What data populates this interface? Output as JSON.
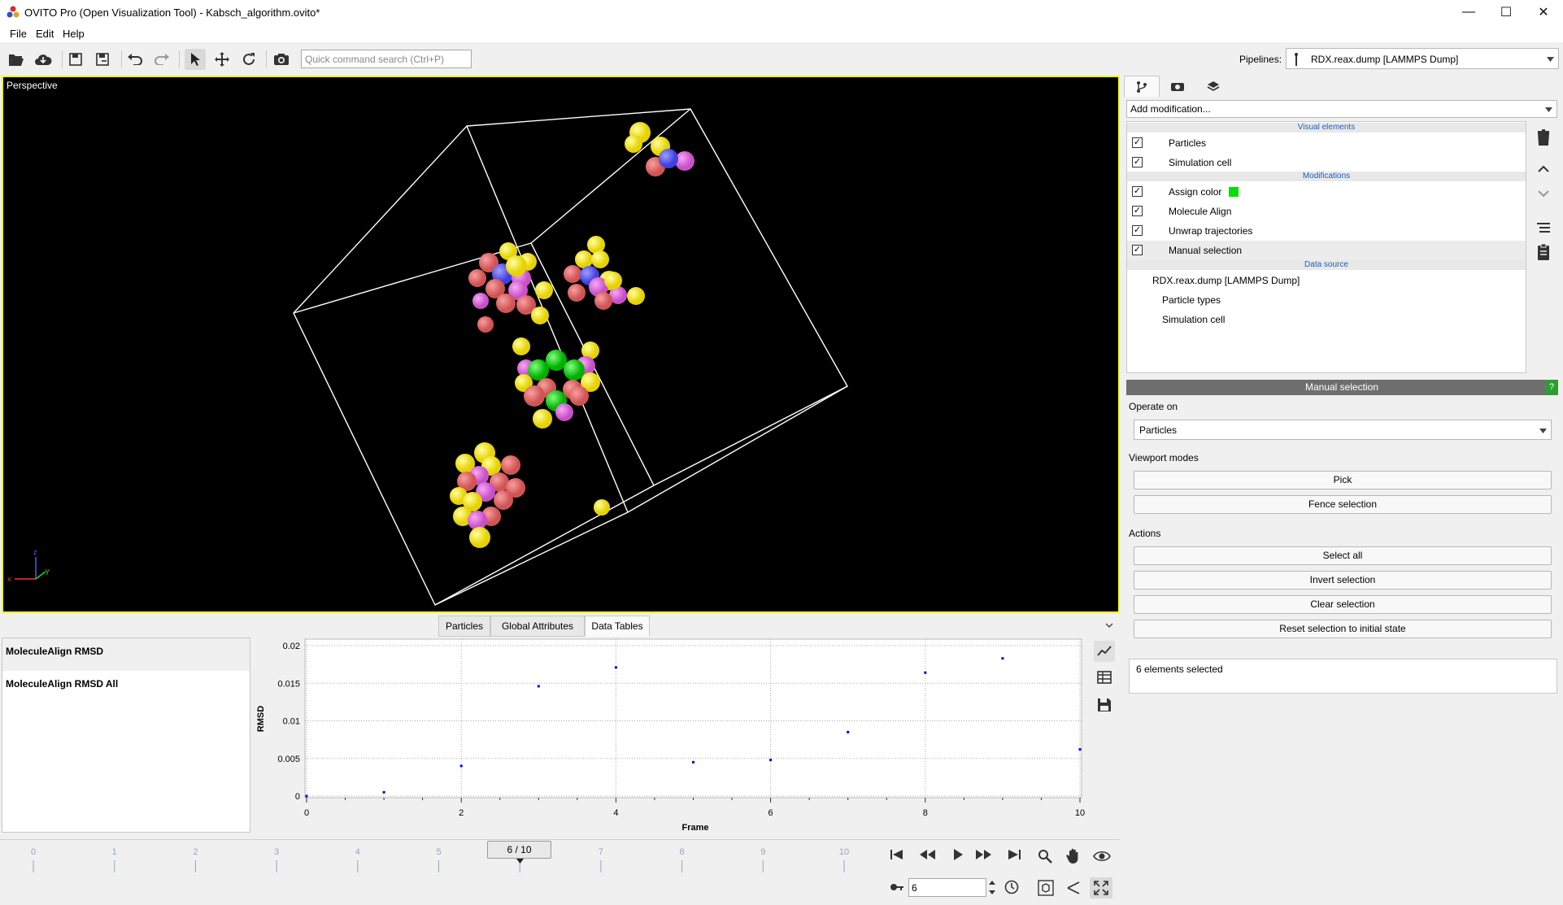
{
  "window": {
    "title": "OVITO Pro (Open Visualization Tool) - Kabsch_algorithm.ovito*",
    "minimize": "—",
    "maximize": "☐",
    "close": "✕"
  },
  "menu": [
    "File",
    "Edit",
    "Help"
  ],
  "toolbar": {
    "search_placeholder": "Quick command search (Ctrl+P)",
    "pipelines_label": "Pipelines:",
    "pipeline_value": "RDX.reax.dump [LAMMPS Dump]"
  },
  "viewport": {
    "caption": "Perspective",
    "axes": {
      "x": "x",
      "y": "y",
      "z": "z"
    }
  },
  "bottom_tabs": [
    "Particles",
    "Global Attributes",
    "Data Tables"
  ],
  "active_bottom_tab": "Data Tables",
  "data_tables": [
    "MoleculeAlign RMSD",
    "MoleculeAlign RMSD All"
  ],
  "chart_data": {
    "type": "scatter",
    "xlabel": "Frame",
    "ylabel": "RMSD",
    "xlim": [
      0,
      10
    ],
    "ylim": [
      0,
      0.02
    ],
    "x_ticks": [
      "0",
      "2",
      "4",
      "6",
      "8",
      "10"
    ],
    "y_ticks": [
      "0",
      "0.005",
      "0.01",
      "0.015",
      "0.02"
    ],
    "x": [
      0,
      1,
      2,
      3,
      4,
      5,
      6,
      7,
      8,
      9,
      10
    ],
    "y": [
      0.0,
      0.0005,
      0.004,
      0.0146,
      0.0171,
      0.0045,
      0.0048,
      0.0085,
      0.0164,
      0.0183,
      0.0062
    ],
    "color": "#0000ff",
    "grid": true
  },
  "timeline": {
    "ticks": [
      "0",
      "1",
      "2",
      "3",
      "4",
      "5",
      "6",
      "7",
      "8",
      "9",
      "10"
    ],
    "current_label": "6 / 10",
    "current_frame": 6,
    "total_frames": 10,
    "spinner_value": "6"
  },
  "command_panel": {
    "add_modification": "Add modification...",
    "headers": {
      "visual": "Visual elements",
      "modifications": "Modifications",
      "data_source": "Data source"
    },
    "visual_elements": [
      {
        "label": "Particles",
        "checked": true
      },
      {
        "label": "Simulation cell",
        "checked": true
      }
    ],
    "modifications": [
      {
        "label": "Assign color",
        "checked": true,
        "swatch": "#00e000"
      },
      {
        "label": "Molecule Align",
        "checked": true
      },
      {
        "label": "Unwrap trajectories",
        "checked": true
      },
      {
        "label": "Manual selection",
        "checked": true,
        "selected": true
      }
    ],
    "data_source": {
      "file": "RDX.reax.dump [LAMMPS Dump]",
      "children": [
        "Particle types",
        "Simulation cell"
      ]
    },
    "check_mark": "✓"
  },
  "properties": {
    "title": "Manual selection",
    "help": "?",
    "operate_on_label": "Operate on",
    "operate_on_value": "Particles",
    "viewport_modes_label": "Viewport modes",
    "pick": "Pick",
    "fence": "Fence selection",
    "actions_label": "Actions",
    "select_all": "Select all",
    "invert": "Invert selection",
    "clear": "Clear selection",
    "reset": "Reset selection to initial state",
    "status": "6 elements selected"
  },
  "colors": {
    "viewport_border": "#ffff00",
    "oxygen": "#e86a6a",
    "hydrogen": "#f0e000",
    "nitrogen": "#6464ff",
    "carbon": "#e060e0",
    "selected": "#00cc00"
  }
}
